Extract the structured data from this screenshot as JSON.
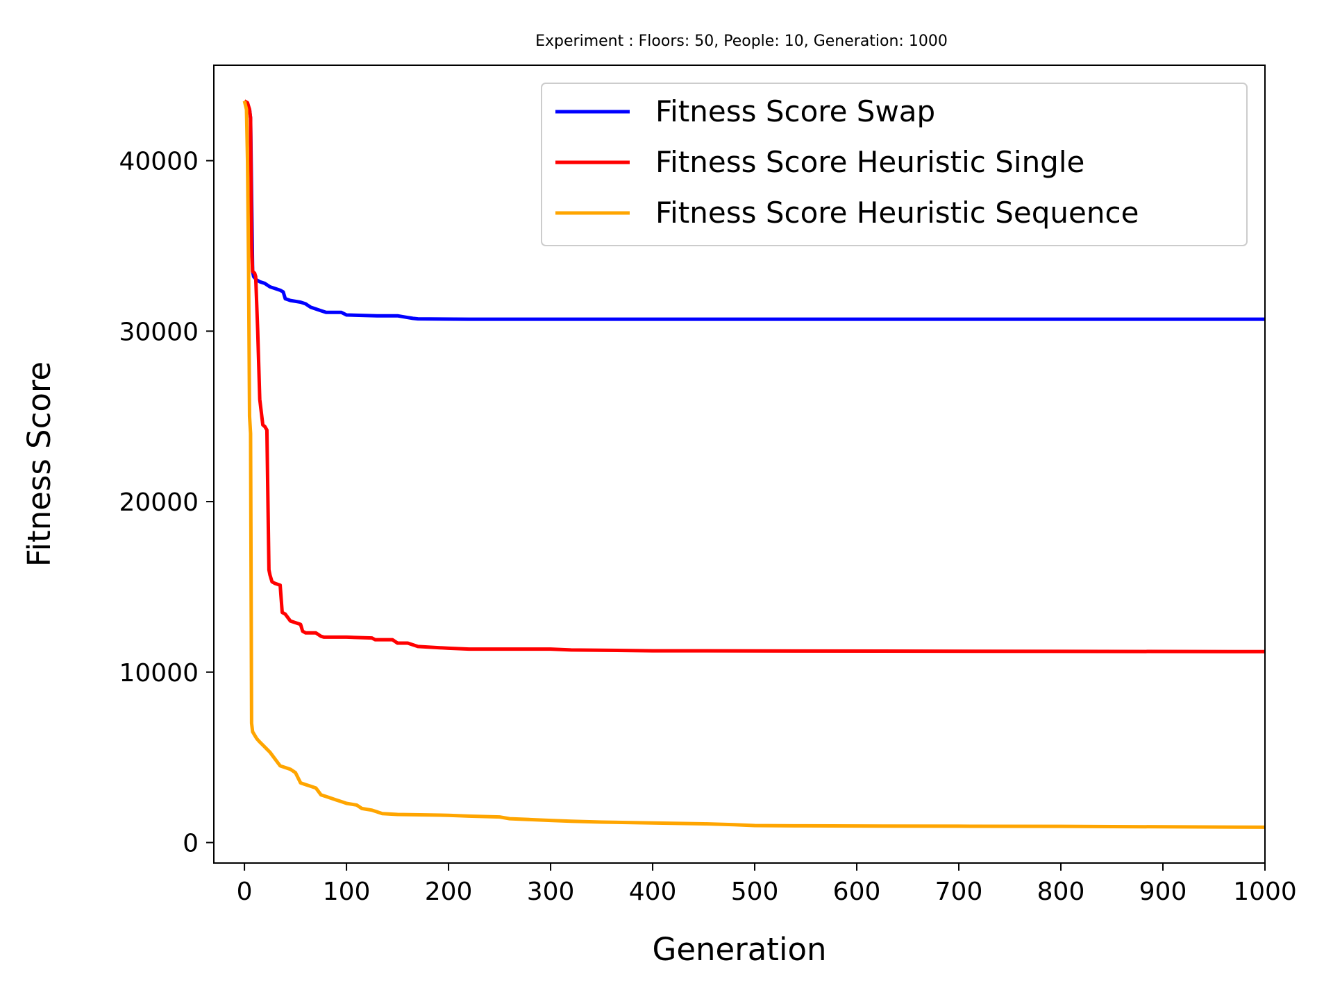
{
  "chart_data": {
    "type": "line",
    "title": "Experiment : Floors: 50, People: 10, Generation: 1000",
    "xlabel": "Generation",
    "ylabel": "Fitness Score",
    "xlim": [
      -30,
      1000
    ],
    "ylim": [
      -1200,
      45600
    ],
    "xticks": [
      0,
      100,
      200,
      300,
      400,
      500,
      600,
      700,
      800,
      900,
      1000
    ],
    "yticks": [
      0,
      10000,
      20000,
      30000,
      40000
    ],
    "grid": false,
    "legend_position": "top-right",
    "series": [
      {
        "name": "Fitness Score Swap",
        "color": "#0000ff",
        "x": [
          0,
          3,
          5,
          6,
          8,
          9,
          12,
          15,
          20,
          25,
          30,
          35,
          38,
          40,
          45,
          55,
          60,
          65,
          70,
          75,
          80,
          85,
          90,
          95,
          100,
          130,
          150,
          160,
          165,
          170,
          220,
          300,
          1000
        ],
        "y": [
          43500,
          43300,
          43000,
          42500,
          33500,
          33200,
          33000,
          32900,
          32800,
          32600,
          32500,
          32400,
          32300,
          31900,
          31800,
          31700,
          31600,
          31400,
          31300,
          31200,
          31100,
          31100,
          31100,
          31100,
          30950,
          30900,
          30900,
          30800,
          30750,
          30720,
          30700,
          30700,
          30700
        ]
      },
      {
        "name": "Fitness Score Heuristic Single",
        "color": "#ff0000",
        "x": [
          0,
          3,
          5,
          6,
          7,
          8,
          10,
          11,
          13,
          15,
          18,
          20,
          22,
          24,
          25,
          27,
          30,
          35,
          37,
          40,
          45,
          55,
          57,
          60,
          62,
          70,
          75,
          78,
          80,
          100,
          125,
          128,
          145,
          150,
          160,
          170,
          200,
          220,
          300,
          320,
          400,
          1000
        ],
        "y": [
          43500,
          43400,
          43000,
          42500,
          35000,
          33500,
          33400,
          33200,
          30000,
          26000,
          24500,
          24400,
          24200,
          16000,
          15700,
          15300,
          15200,
          15100,
          13500,
          13400,
          13000,
          12800,
          12400,
          12300,
          12300,
          12300,
          12100,
          12050,
          12050,
          12050,
          12000,
          11900,
          11900,
          11700,
          11700,
          11500,
          11400,
          11350,
          11350,
          11300,
          11250,
          11200
        ]
      },
      {
        "name": "Fitness Score Heuristic Sequence",
        "color": "#ffa500",
        "x": [
          0,
          2,
          3,
          4,
          5,
          6,
          7,
          8,
          9,
          10,
          12,
          15,
          20,
          25,
          30,
          35,
          40,
          45,
          50,
          55,
          60,
          65,
          70,
          75,
          80,
          90,
          95,
          100,
          110,
          115,
          125,
          130,
          135,
          150,
          200,
          220,
          250,
          260,
          280,
          300,
          320,
          350,
          400,
          450,
          480,
          500,
          550,
          600,
          700,
          800,
          1000
        ],
        "y": [
          43500,
          43000,
          40000,
          34000,
          25000,
          24000,
          7000,
          6500,
          6400,
          6300,
          6100,
          5900,
          5600,
          5300,
          4900,
          4500,
          4400,
          4300,
          4100,
          3500,
          3400,
          3300,
          3200,
          2800,
          2700,
          2500,
          2400,
          2300,
          2200,
          2000,
          1900,
          1800,
          1700,
          1650,
          1600,
          1550,
          1500,
          1400,
          1350,
          1300,
          1250,
          1200,
          1150,
          1100,
          1050,
          1000,
          980,
          970,
          960,
          950,
          900
        ]
      }
    ]
  }
}
